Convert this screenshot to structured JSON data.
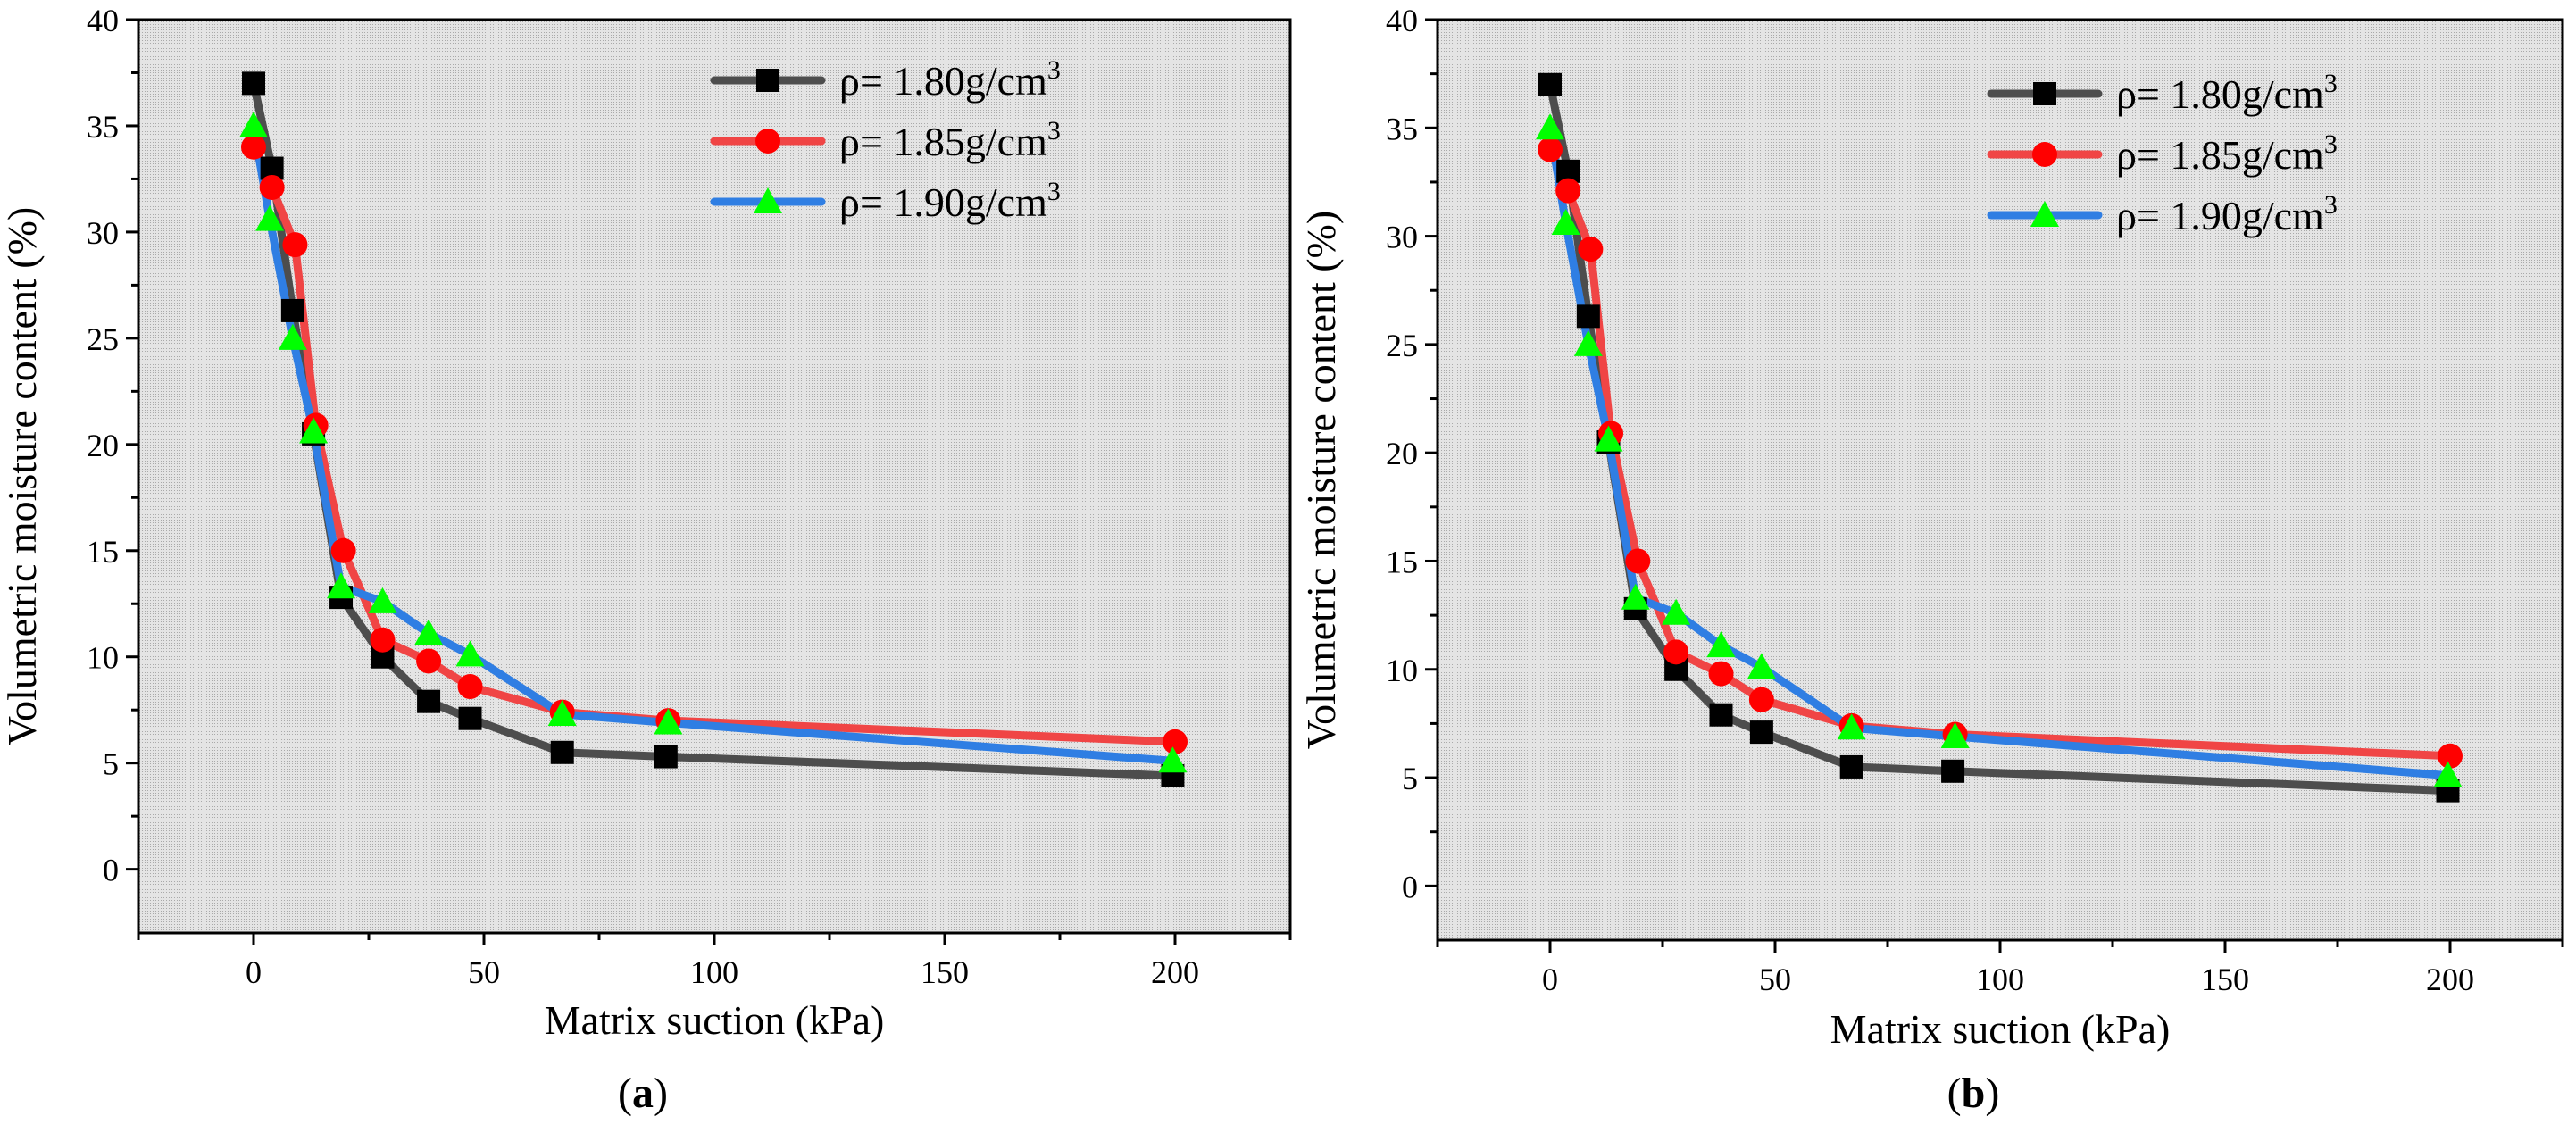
{
  "figure": {
    "panel_labels": [
      "(a)",
      "(b)"
    ]
  },
  "colors": {
    "series_1": "#4d4d4d",
    "series_2": "#f04545",
    "series_3": "#2f7ee3",
    "marker_1": "#000000",
    "marker_2": "#ff0000",
    "marker_3": "#00ff00",
    "plot_bg": "#d6d6d6"
  },
  "chart_data": [
    {
      "type": "line",
      "panel": "a",
      "xlabel": "Matrix suction (kPa)",
      "ylabel": "Volumetric moisture content (%)",
      "xlim": [
        -25,
        225
      ],
      "ylim": [
        -3,
        40
      ],
      "xticks": [
        0,
        50,
        100,
        150,
        200
      ],
      "yticks": [
        0,
        5,
        10,
        15,
        20,
        25,
        30,
        35,
        40
      ],
      "legend_position": "top-right",
      "series": [
        {
          "name": "ρ= 1.80g/cm3",
          "label_main": "ρ= 1.80g/cm",
          "label_sup": "3",
          "marker": "square",
          "x": [
            0,
            4,
            8.5,
            13,
            19,
            28,
            38,
            47,
            67,
            89.5,
            199.5
          ],
          "y": [
            37,
            33,
            26.3,
            20.5,
            12.8,
            10,
            7.9,
            7.1,
            5.5,
            5.3,
            4.4
          ]
        },
        {
          "name": "ρ= 1.85g/cm3",
          "label_main": "ρ= 1.85g/cm",
          "label_sup": "3",
          "marker": "circle",
          "x": [
            0,
            4,
            9,
            13.5,
            19.5,
            28,
            38,
            47,
            67,
            90,
            200
          ],
          "y": [
            34,
            32.1,
            29.4,
            20.9,
            15,
            10.8,
            9.8,
            8.6,
            7.4,
            7,
            6
          ]
        },
        {
          "name": "ρ= 1.90g/cm3",
          "label_main": "ρ= 1.90g/cm",
          "label_sup": "3",
          "marker": "triangle",
          "x": [
            0,
            3.5,
            8.5,
            13,
            19,
            28,
            38,
            47,
            67,
            90,
            199.5
          ],
          "y": [
            35,
            30.6,
            25,
            20.6,
            13.3,
            12.6,
            11.1,
            10.1,
            7.3,
            6.9,
            5.1
          ]
        }
      ]
    },
    {
      "type": "line",
      "panel": "b",
      "xlabel": "Matrix suction (kPa)",
      "ylabel": "Volumetric moisture content (%)",
      "xlim": [
        -25,
        225
      ],
      "ylim": [
        -2.5,
        40
      ],
      "xticks": [
        0,
        50,
        100,
        150,
        200
      ],
      "yticks": [
        0,
        5,
        10,
        15,
        20,
        25,
        30,
        35,
        40
      ],
      "legend_position": "top-right",
      "series": [
        {
          "name": "ρ= 1.80g/cm3",
          "label_main": "ρ= 1.80g/cm",
          "label_sup": "3",
          "marker": "square",
          "x": [
            0,
            4,
            8.5,
            13,
            19,
            28,
            38,
            47,
            67,
            89.5,
            199.5
          ],
          "y": [
            37,
            33,
            26.3,
            20.5,
            12.8,
            10,
            7.9,
            7.1,
            5.5,
            5.3,
            4.4
          ]
        },
        {
          "name": "ρ= 1.85g/cm3",
          "label_main": "ρ= 1.85g/cm",
          "label_sup": "3",
          "marker": "circle",
          "x": [
            0,
            4,
            9,
            13.5,
            19.5,
            28,
            38,
            47,
            67,
            90,
            200
          ],
          "y": [
            34,
            32.1,
            29.4,
            20.9,
            15,
            10.8,
            9.8,
            8.6,
            7.4,
            7,
            6
          ]
        },
        {
          "name": "ρ= 1.90g/cm3",
          "label_main": "ρ= 1.90g/cm",
          "label_sup": "3",
          "marker": "triangle",
          "x": [
            0,
            3.5,
            8.5,
            13,
            19,
            28,
            38,
            47,
            67,
            90,
            199.5
          ],
          "y": [
            35,
            30.6,
            25,
            20.6,
            13.3,
            12.6,
            11.1,
            10.1,
            7.3,
            6.9,
            5.1
          ]
        }
      ]
    }
  ]
}
